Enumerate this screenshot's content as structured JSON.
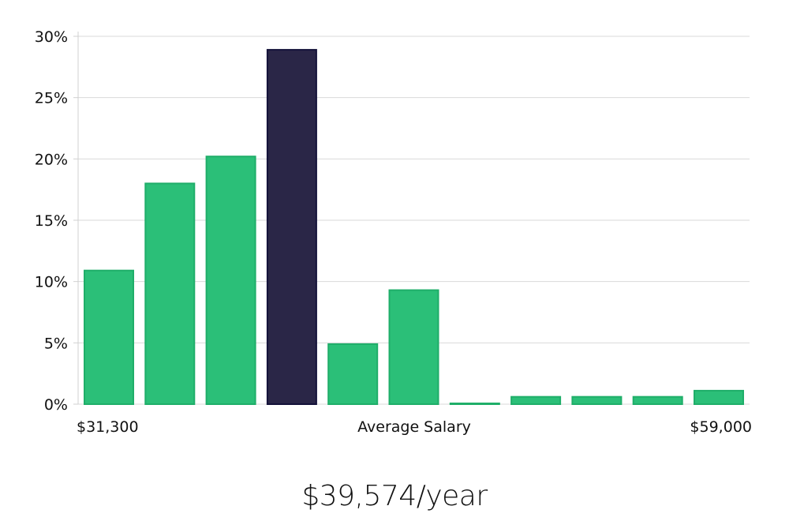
{
  "chart_data": {
    "type": "bar",
    "values": [
      10.9,
      18.0,
      20.2,
      28.9,
      4.9,
      9.3,
      0.05,
      0.6,
      0.6,
      0.6,
      1.1
    ],
    "highlight_index": 3,
    "ylim": [
      0,
      30
    ],
    "yticks": [
      0,
      5,
      10,
      15,
      20,
      25,
      30
    ],
    "ytick_labels": [
      "0%",
      "5%",
      "10%",
      "15%",
      "20%",
      "25%",
      "30%"
    ],
    "x_min_label": "$31,300",
    "x_center_label": "Average Salary",
    "x_max_label": "$59,000",
    "grid": true,
    "colors": {
      "bar": "#2bbf78",
      "bar_edge": "#1fae69",
      "highlight": "#2a2647",
      "highlight_edge": "#14123a"
    }
  },
  "summary": {
    "average_salary": "$39,574/year"
  }
}
